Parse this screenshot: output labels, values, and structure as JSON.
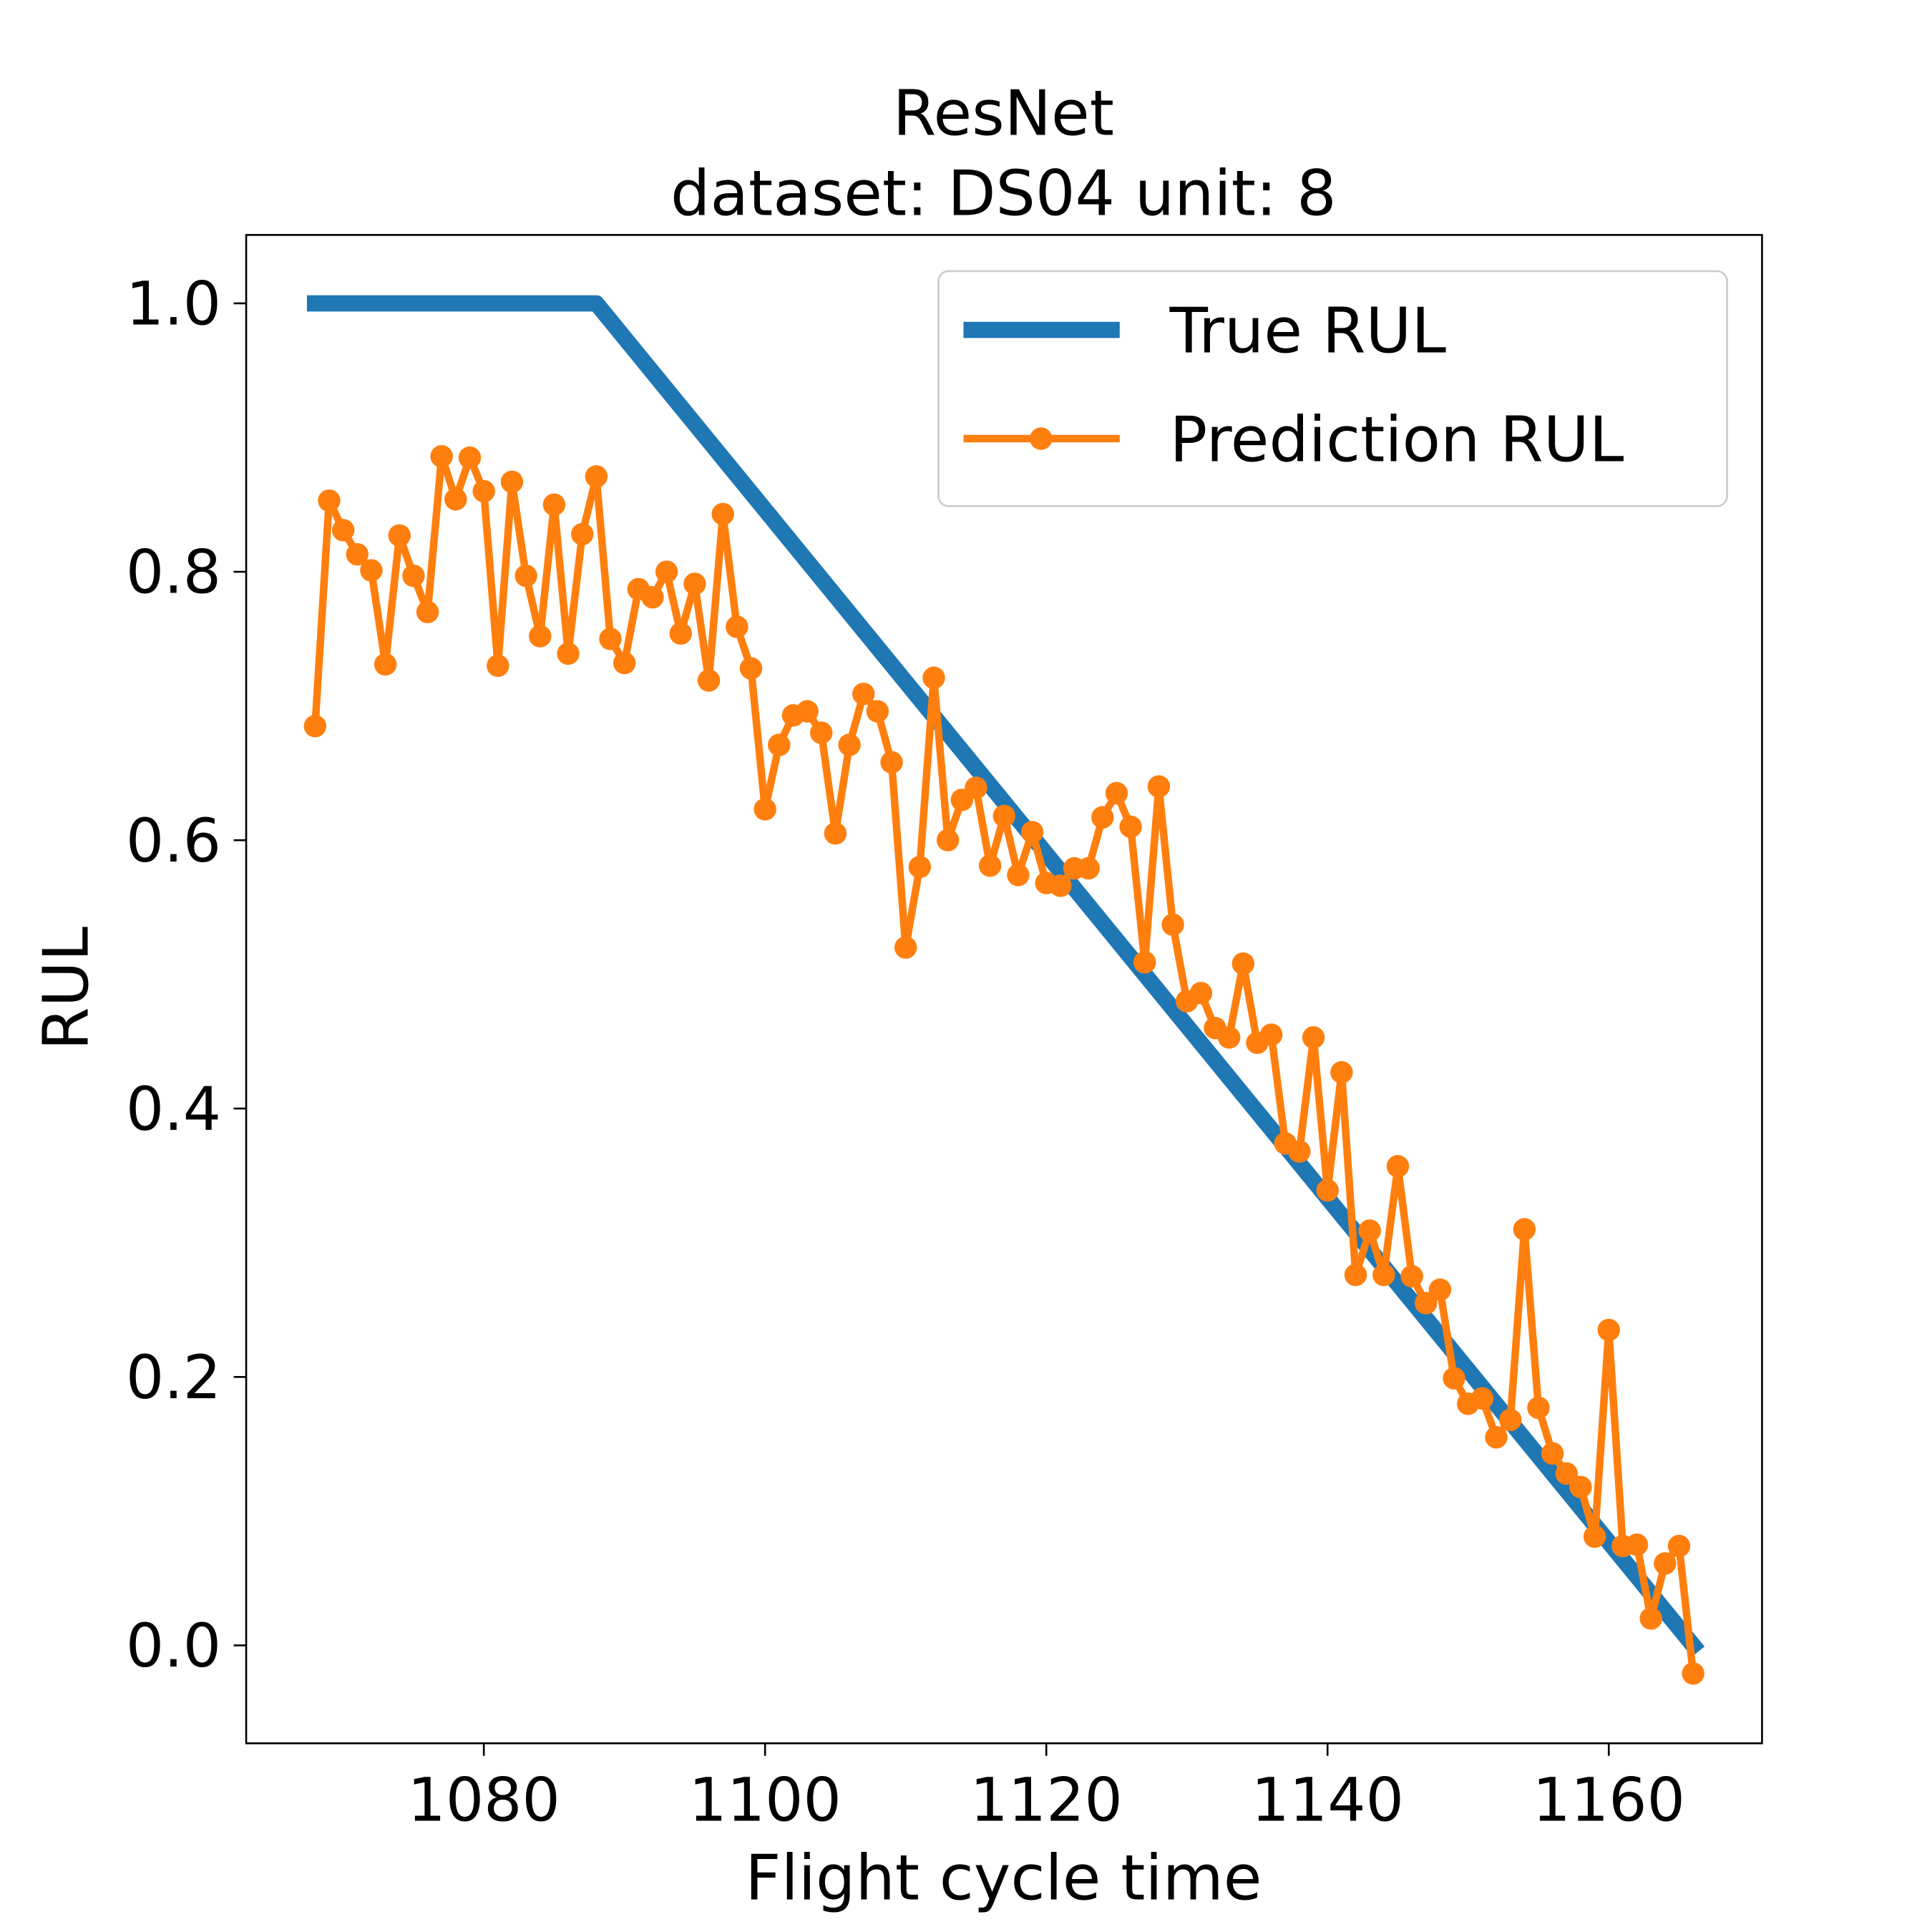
{
  "chart_data": {
    "type": "line",
    "title": "ResNet",
    "subtitle": "dataset: DS04 unit: 8",
    "x_label": "Flight cycle time",
    "y_label": "RUL",
    "xlim": [
      1063.1,
      1170.9
    ],
    "ylim": [
      -0.073,
      1.051
    ],
    "xticks": [
      1080,
      1100,
      1120,
      1140,
      1160
    ],
    "yticks": [
      {
        "value": 0,
        "label": "0.0"
      },
      {
        "value": 0.2,
        "label": "0.2"
      },
      {
        "value": 0.4,
        "label": "0.4"
      },
      {
        "value": 0.6,
        "label": "0.6"
      },
      {
        "value": 0.8,
        "label": "0.8"
      },
      {
        "value": 1,
        "label": "1.0"
      }
    ],
    "legend": "upper right",
    "series": [
      {
        "name": "True RUL",
        "color": "#1f77b4",
        "x": [
          1068,
          1088,
          1166
        ],
        "values": [
          1,
          1,
          0
        ]
      },
      {
        "name": "Prediction RUL",
        "color": "#ff7f0e",
        "marker": true,
        "x": [
          1068,
          1069,
          1070,
          1071,
          1072,
          1073,
          1074,
          1075,
          1076,
          1077,
          1078,
          1079,
          1080,
          1081,
          1082,
          1083,
          1084,
          1085,
          1086,
          1087,
          1088,
          1089,
          1090,
          1091,
          1092,
          1093,
          1094,
          1095,
          1096,
          1097,
          1098,
          1099,
          1100,
          1101,
          1102,
          1103,
          1104,
          1105,
          1106,
          1107,
          1108,
          1109,
          1110,
          1111,
          1112,
          1113,
          1114,
          1115,
          1116,
          1117,
          1118,
          1119,
          1120,
          1121,
          1122,
          1123,
          1124,
          1125,
          1126,
          1127,
          1128,
          1129,
          1130,
          1131,
          1132,
          1133,
          1134,
          1135,
          1136,
          1137,
          1138,
          1139,
          1140,
          1141,
          1142,
          1143,
          1144,
          1145,
          1146,
          1147,
          1148,
          1149,
          1150,
          1151,
          1152,
          1153,
          1154,
          1155,
          1156,
          1157,
          1158,
          1159,
          1160,
          1161,
          1162,
          1163,
          1164,
          1165,
          1166
        ],
        "values": [
          0.685,
          0.853,
          0.831,
          0.813,
          0.801,
          0.731,
          0.827,
          0.797,
          0.77,
          0.886,
          0.854,
          0.885,
          0.86,
          0.73,
          0.867,
          0.797,
          0.752,
          0.85,
          0.739,
          0.828,
          0.871,
          0.75,
          0.732,
          0.787,
          0.781,
          0.8,
          0.754,
          0.791,
          0.719,
          0.843,
          0.759,
          0.728,
          0.623,
          0.671,
          0.693,
          0.696,
          0.68,
          0.605,
          0.671,
          0.709,
          0.696,
          0.658,
          0.52,
          0.58,
          0.721,
          0.6,
          0.63,
          0.639,
          0.581,
          0.618,
          0.574,
          0.606,
          0.568,
          0.566,
          0.579,
          0.579,
          0.617,
          0.635,
          0.61,
          0.509,
          0.64,
          0.537,
          0.48,
          0.486,
          0.46,
          0.453,
          0.508,
          0.449,
          0.455,
          0.374,
          0.368,
          0.453,
          0.339,
          0.427,
          0.276,
          0.309,
          0.276,
          0.357,
          0.275,
          0.255,
          0.265,
          0.199,
          0.18,
          0.184,
          0.155,
          0.168,
          0.31,
          0.177,
          0.143,
          0.128,
          0.118,
          0.081,
          0.235,
          0.074,
          0.075,
          0.02,
          0.061,
          0.074,
          -0.021
        ]
      }
    ]
  }
}
